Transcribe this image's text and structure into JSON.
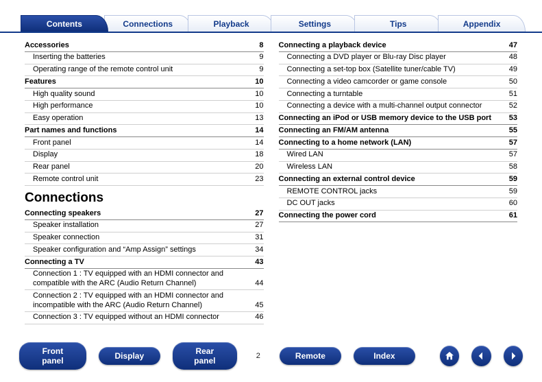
{
  "tabs": [
    "Contents",
    "Connections",
    "Playback",
    "Settings",
    "Tips",
    "Appendix"
  ],
  "active_tab": 0,
  "left": {
    "sections": [
      {
        "title": "Accessories",
        "page": 8,
        "items": [
          {
            "label": "Inserting the batteries",
            "page": 9
          },
          {
            "label": "Operating range of the remote control unit",
            "page": 9
          }
        ]
      },
      {
        "title": "Features",
        "page": 10,
        "items": [
          {
            "label": "High quality sound",
            "page": 10
          },
          {
            "label": "High performance",
            "page": 10
          },
          {
            "label": "Easy operation",
            "page": 13
          }
        ]
      },
      {
        "title": "Part names and functions",
        "page": 14,
        "items": [
          {
            "label": "Front panel",
            "page": 14
          },
          {
            "label": "Display",
            "page": 18
          },
          {
            "label": "Rear panel",
            "page": 20
          },
          {
            "label": "Remote control unit",
            "page": 23
          }
        ]
      }
    ],
    "heading": "Connections",
    "sections2": [
      {
        "title": "Connecting speakers",
        "page": 27,
        "items": [
          {
            "label": "Speaker installation",
            "page": 27
          },
          {
            "label": "Speaker connection",
            "page": 31
          },
          {
            "label": "Speaker configuration and “Amp Assign” settings",
            "page": 34
          }
        ]
      },
      {
        "title": "Connecting a TV",
        "page": 43,
        "items": [
          {
            "label": "Connection 1 : TV equipped with an HDMI connector and compatible with the ARC (Audio Return Channel)",
            "page": 44
          },
          {
            "label": "Connection 2 : TV equipped with an HDMI connector and incompatible with the ARC (Audio Return Channel)",
            "page": 45
          },
          {
            "label": "Connection 3 : TV equipped without an HDMI connector",
            "page": 46
          }
        ]
      }
    ]
  },
  "right": {
    "sections": [
      {
        "title": "Connecting a playback device",
        "page": 47,
        "items": [
          {
            "label": "Connecting a DVD player or Blu-ray Disc player",
            "page": 48
          },
          {
            "label": "Connecting a set-top box (Satellite tuner/cable TV)",
            "page": 49
          },
          {
            "label": "Connecting a video camcorder or game console",
            "page": 50
          },
          {
            "label": "Connecting a turntable",
            "page": 51
          },
          {
            "label": "Connecting a device with a multi-channel output connector",
            "page": 52
          }
        ]
      },
      {
        "title": "Connecting an iPod or USB memory device to the USB port",
        "page": 53,
        "items": []
      },
      {
        "title": "Connecting an FM/AM antenna",
        "page": 55,
        "items": []
      },
      {
        "title": "Connecting to a home network (LAN)",
        "page": 57,
        "items": [
          {
            "label": "Wired LAN",
            "page": 57
          },
          {
            "label": "Wireless LAN",
            "page": 58
          }
        ]
      },
      {
        "title": "Connecting an external control device",
        "page": 59,
        "items": [
          {
            "label": "REMOTE CONTROL jacks",
            "page": 59
          },
          {
            "label": "DC OUT jacks",
            "page": 60
          }
        ]
      },
      {
        "title": "Connecting the power cord",
        "page": 61,
        "items": []
      }
    ]
  },
  "footer": {
    "buttons": [
      "Front panel",
      "Display",
      "Rear panel"
    ],
    "page_number": "2",
    "buttons2": [
      "Remote",
      "Index"
    ]
  },
  "colors": {
    "primary": "#123a8a",
    "tab_gradient_top": "#2a4fa8",
    "tab_gradient_bottom": "#0f2f7a"
  }
}
